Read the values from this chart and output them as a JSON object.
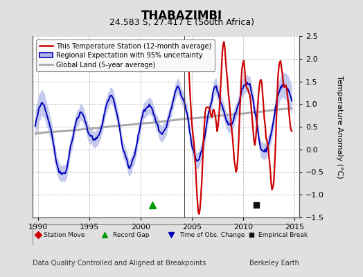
{
  "title": "THABAZIMBI",
  "subtitle": "24.583 S, 27.417 E (South Africa)",
  "ylabel": "Temperature Anomaly (°C)",
  "xlabel_left": "Data Quality Controlled and Aligned at Breakpoints",
  "xlabel_right": "Berkeley Earth",
  "ylim": [
    -1.5,
    2.5
  ],
  "xlim": [
    1989.5,
    2015.5
  ],
  "yticks": [
    -1.5,
    -1.0,
    -0.5,
    0.0,
    0.5,
    1.0,
    1.5,
    2.0,
    2.5
  ],
  "xticks": [
    1990,
    1995,
    2000,
    2005,
    2010,
    2015
  ],
  "bg_color": "#e0e0e0",
  "plot_bg_color": "#ffffff",
  "grid_color": "#bbbbbb",
  "red_color": "#cc0000",
  "blue_color": "#0000bb",
  "blue_fill_color": "#b0b8e8",
  "gray_color": "#aaaaaa",
  "vertical_line_x": 2004.3,
  "record_gap_x": 2001.2,
  "empirical_break_x": 2011.3,
  "title_fontsize": 12,
  "subtitle_fontsize": 9,
  "tick_fontsize": 8,
  "ylabel_fontsize": 8,
  "legend_fontsize": 7,
  "footer_fontsize": 7
}
